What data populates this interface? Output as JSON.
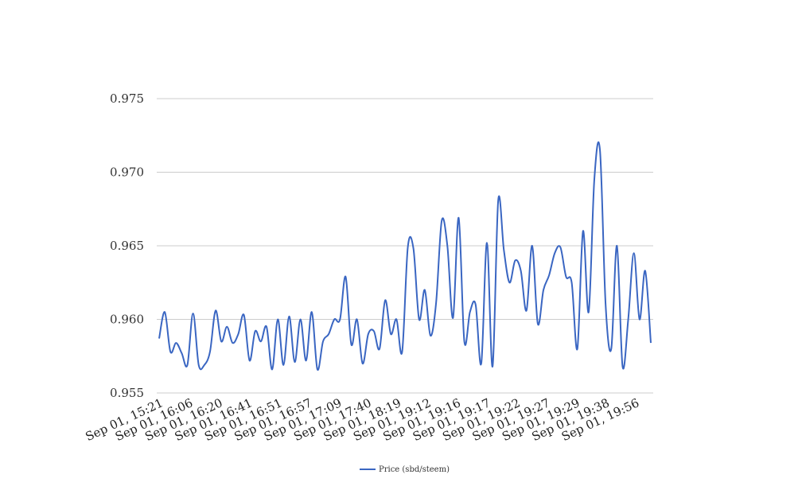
{
  "chart_data": {
    "type": "line",
    "title": "",
    "xlabel": "",
    "ylabel": "",
    "ylim": [
      0.955,
      0.975
    ],
    "yticks": [
      "0.955",
      "0.960",
      "0.965",
      "0.970",
      "0.975"
    ],
    "xtick_labels": [
      "Sep 01, 15:21",
      "Sep 01, 16:06",
      "Sep 01, 16:20",
      "Sep 01, 16:41",
      "Sep 01, 16:51",
      "Sep 01, 16:57",
      "Sep 01, 17:09",
      "Sep 01, 17:40",
      "Sep 01, 18:19",
      "Sep 01, 19:12",
      "Sep 01, 19:16",
      "Sep 01, 19:17",
      "Sep 01, 19:22",
      "Sep 01, 19:27",
      "Sep 01, 19:29",
      "Sep 01, 19:38",
      "Sep 01, 19:56"
    ],
    "grid": true,
    "legend_position": "bottom",
    "series": [
      {
        "name": "Price (sbd/steem)",
        "color": "#3a66c2",
        "values": [
          0.9587,
          0.9605,
          0.9578,
          0.9584,
          0.9577,
          0.9569,
          0.9604,
          0.9569,
          0.9569,
          0.9578,
          0.9606,
          0.9585,
          0.9595,
          0.9584,
          0.959,
          0.9603,
          0.9572,
          0.9592,
          0.9585,
          0.9595,
          0.9566,
          0.96,
          0.9569,
          0.9602,
          0.9571,
          0.96,
          0.9572,
          0.9605,
          0.9566,
          0.9585,
          0.959,
          0.96,
          0.96,
          0.9629,
          0.9583,
          0.96,
          0.957,
          0.959,
          0.9592,
          0.958,
          0.9613,
          0.959,
          0.96,
          0.9578,
          0.9649,
          0.9648,
          0.96,
          0.962,
          0.9589,
          0.9611,
          0.9667,
          0.965,
          0.9601,
          0.9669,
          0.9585,
          0.9605,
          0.961,
          0.957,
          0.9652,
          0.9568,
          0.9681,
          0.9647,
          0.9625,
          0.964,
          0.9633,
          0.9606,
          0.965,
          0.9597,
          0.962,
          0.963,
          0.9645,
          0.9649,
          0.9629,
          0.9625,
          0.958,
          0.966,
          0.9605,
          0.9695,
          0.9715,
          0.961,
          0.958,
          0.965,
          0.9568,
          0.96,
          0.9645,
          0.96,
          0.9633,
          0.9584
        ]
      }
    ]
  }
}
